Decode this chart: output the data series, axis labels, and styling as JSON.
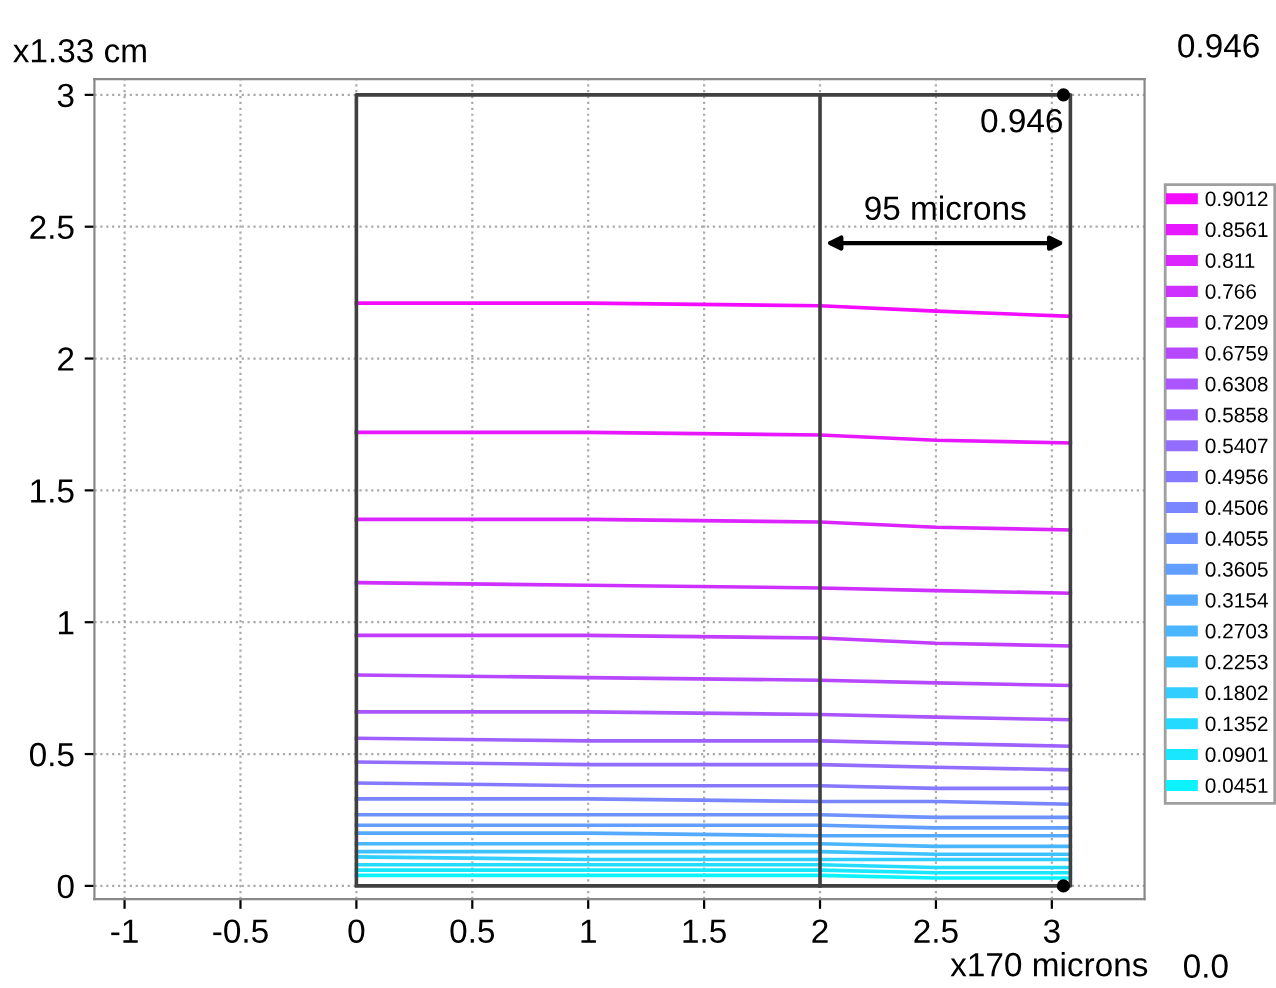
{
  "chart_data": {
    "type": "line",
    "xlabel": "x170 microns",
    "ylabel": "x1.33 cm",
    "xlim": [
      -1.13,
      3.4
    ],
    "ylim": [
      -0.05,
      3.06
    ],
    "xticks": [
      -1,
      -0.5,
      0,
      0.5,
      1,
      1.5,
      2,
      2.5,
      3
    ],
    "yticks": [
      0,
      0.5,
      1,
      1.5,
      2,
      2.5,
      3
    ],
    "grid": true,
    "legend": "right",
    "line_style": "solid",
    "annotations": [
      "0.946",
      "0.0",
      {
        "text": "0.946",
        "x": 3.05,
        "y": 3
      },
      "95 microns"
    ],
    "ref_lines": [
      {
        "axis": "x",
        "value": 2,
        "color": "#404040"
      }
    ],
    "series": [
      {
        "name": "0.9012",
        "color": "#f30cff",
        "x": [
          0,
          1,
          2,
          2.5,
          3.08
        ],
        "values": [
          2.21,
          2.21,
          2.2,
          2.18,
          2.16
        ]
      },
      {
        "name": "0.8561",
        "color": "#e718ff",
        "x": [
          0,
          1,
          2,
          2.5,
          3.08
        ],
        "values": [
          1.72,
          1.72,
          1.71,
          1.69,
          1.68
        ]
      },
      {
        "name": "0.811",
        "color": "#db24ff",
        "x": [
          0,
          1,
          2,
          2.5,
          3.08
        ],
        "values": [
          1.39,
          1.39,
          1.38,
          1.36,
          1.35
        ]
      },
      {
        "name": "0.766",
        "color": "#ce31ff",
        "x": [
          0,
          1,
          2,
          2.5,
          3.08
        ],
        "values": [
          1.15,
          1.14,
          1.13,
          1.12,
          1.11
        ]
      },
      {
        "name": "0.7209",
        "color": "#c23dff",
        "x": [
          0,
          1,
          2,
          2.5,
          3.08
        ],
        "values": [
          0.95,
          0.95,
          0.94,
          0.92,
          0.91
        ]
      },
      {
        "name": "0.6759",
        "color": "#b649ff",
        "x": [
          0,
          1,
          2,
          2.5,
          3.08
        ],
        "values": [
          0.8,
          0.79,
          0.78,
          0.77,
          0.76
        ]
      },
      {
        "name": "0.6308",
        "color": "#aa55ff",
        "x": [
          0,
          1,
          2,
          2.5,
          3.08
        ],
        "values": [
          0.66,
          0.66,
          0.65,
          0.64,
          0.63
        ]
      },
      {
        "name": "0.5858",
        "color": "#9e61ff",
        "x": [
          0,
          1,
          2,
          2.5,
          3.08
        ],
        "values": [
          0.56,
          0.55,
          0.55,
          0.54,
          0.53
        ]
      },
      {
        "name": "0.5407",
        "color": "#926dff",
        "x": [
          0,
          1,
          2,
          2.5,
          3.08
        ],
        "values": [
          0.47,
          0.46,
          0.46,
          0.45,
          0.44
        ]
      },
      {
        "name": "0.4956",
        "color": "#8679ff",
        "x": [
          0,
          1,
          2,
          2.5,
          3.08
        ],
        "values": [
          0.39,
          0.38,
          0.38,
          0.37,
          0.37
        ]
      },
      {
        "name": "0.4506",
        "color": "#7986ff",
        "x": [
          0,
          1,
          2,
          2.5,
          3.08
        ],
        "values": [
          0.33,
          0.33,
          0.32,
          0.32,
          0.31
        ]
      },
      {
        "name": "0.4055",
        "color": "#6d92ff",
        "x": [
          0,
          1,
          2,
          2.5,
          3.08
        ],
        "values": [
          0.27,
          0.27,
          0.27,
          0.26,
          0.26
        ]
      },
      {
        "name": "0.3605",
        "color": "#619eff",
        "x": [
          0,
          1,
          2,
          2.5,
          3.08
        ],
        "values": [
          0.23,
          0.23,
          0.23,
          0.22,
          0.22
        ]
      },
      {
        "name": "0.3154",
        "color": "#55aaff",
        "x": [
          0,
          1,
          2,
          2.5,
          3.08
        ],
        "values": [
          0.2,
          0.2,
          0.19,
          0.19,
          0.19
        ]
      },
      {
        "name": "0.2703",
        "color": "#49b6ff",
        "x": [
          0,
          1,
          2,
          2.5,
          3.08
        ],
        "values": [
          0.16,
          0.16,
          0.16,
          0.15,
          0.15
        ]
      },
      {
        "name": "0.2253",
        "color": "#3dc2ff",
        "x": [
          0,
          1,
          2,
          2.5,
          3.08
        ],
        "values": [
          0.13,
          0.13,
          0.13,
          0.12,
          0.12
        ]
      },
      {
        "name": "0.1802",
        "color": "#31ceff",
        "x": [
          0,
          1,
          2,
          2.5,
          3.08
        ],
        "values": [
          0.11,
          0.1,
          0.1,
          0.1,
          0.1
        ]
      },
      {
        "name": "0.1352",
        "color": "#24dbff",
        "x": [
          0,
          1,
          2,
          2.5,
          3.08
        ],
        "values": [
          0.08,
          0.08,
          0.08,
          0.07,
          0.07
        ]
      },
      {
        "name": "0.0901",
        "color": "#18e7ff",
        "x": [
          0,
          1,
          2,
          2.5,
          3.08
        ],
        "values": [
          0.06,
          0.06,
          0.06,
          0.05,
          0.05
        ]
      },
      {
        "name": "0.0451",
        "color": "#0cf3ff",
        "x": [
          0,
          1,
          2,
          2.5,
          3.08
        ],
        "values": [
          0.04,
          0.04,
          0.04,
          0.03,
          0.03
        ]
      },
      {
        "type": "scatter",
        "color": "#000000",
        "x": [
          3.05,
          3.05
        ],
        "values": [
          3,
          0
        ]
      }
    ]
  }
}
